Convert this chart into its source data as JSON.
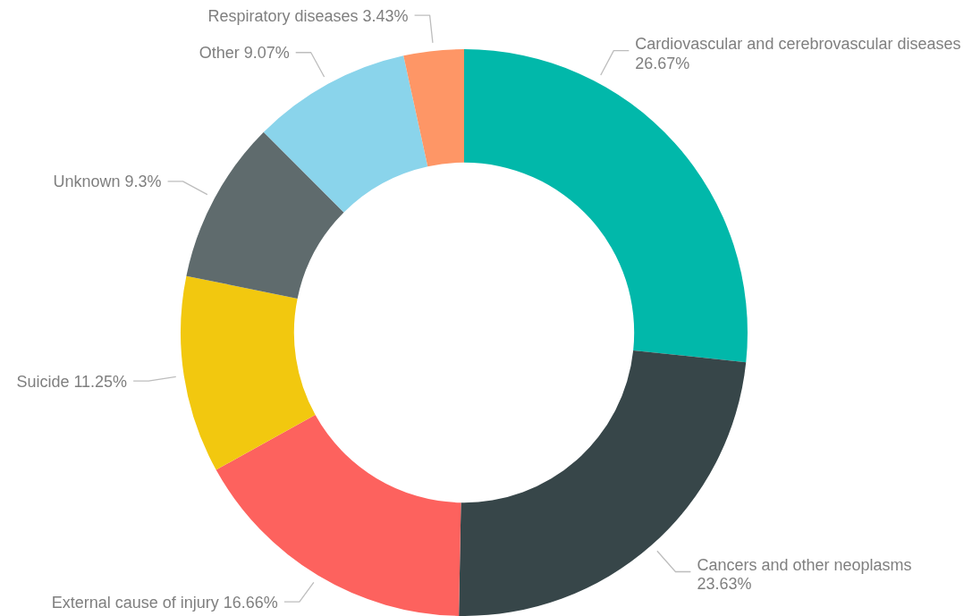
{
  "chart_data": {
    "type": "donut",
    "categories": [
      "Cardiovascular and cerebrovascular diseases",
      "Cancers and other neoplasms",
      "External cause of injury",
      "Suicide",
      "Unknown",
      "Other",
      "Respiratory diseases"
    ],
    "values": [
      26.67,
      23.63,
      16.66,
      11.25,
      9.3,
      9.07,
      3.43
    ],
    "colors": [
      "#01b8aa",
      "#374649",
      "#fd625e",
      "#f2c80f",
      "#5f6b6d",
      "#8ad4eb",
      "#fe9666"
    ],
    "value_labels": [
      "26.67%",
      "23.63%",
      "16.66%",
      "11.25%",
      "9.3%",
      "9.07%",
      "3.43%"
    ]
  }
}
